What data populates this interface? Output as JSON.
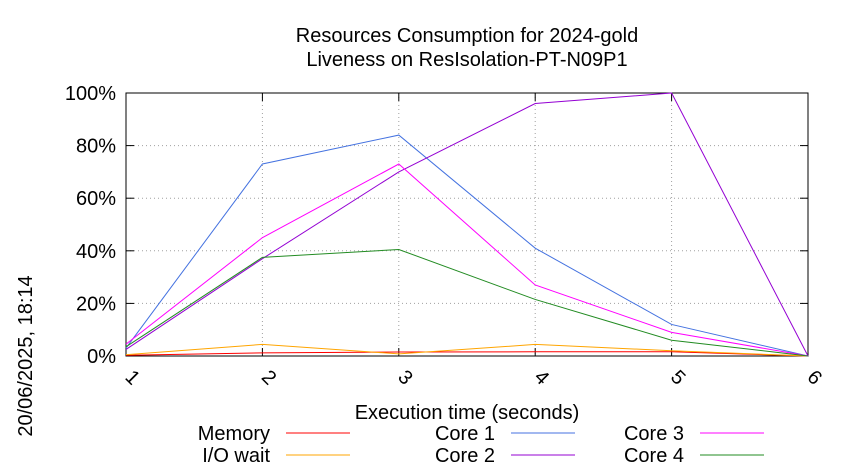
{
  "chart_data": {
    "type": "line",
    "title": "Resources Consumption for 2024-gold",
    "subtitle": "Liveness on ResIsolation-PT-N09P1",
    "xlabel": "Execution time (seconds)",
    "ylabel": "",
    "side_label": "20/06/2025, 18:14",
    "x": [
      1,
      2,
      3,
      4,
      5,
      6
    ],
    "xlim": [
      1,
      6
    ],
    "ylim": [
      0,
      100
    ],
    "y_ticks": [
      0,
      20,
      40,
      60,
      80,
      100
    ],
    "y_tick_labels": [
      "0%",
      "20%",
      "40%",
      "60%",
      "80%",
      "100%"
    ],
    "x_tick_labels": [
      "1",
      "2",
      "3",
      "4",
      "5",
      "6"
    ],
    "grid": true,
    "legend_position": "bottom",
    "series": [
      {
        "name": "Memory",
        "color": "#ff0000",
        "values": [
          0.3,
          1.2,
          1.5,
          1.6,
          1.6,
          0
        ]
      },
      {
        "name": "I/O wait",
        "color": "#ffa500",
        "values": [
          0.5,
          4.4,
          0.8,
          4.4,
          2.0,
          0
        ]
      },
      {
        "name": "Core 1",
        "color": "#4472e0",
        "values": [
          3.0,
          73,
          84,
          41,
          12,
          0
        ]
      },
      {
        "name": "Core 2",
        "color": "#9400d3",
        "values": [
          2.5,
          37,
          70,
          96,
          100,
          0
        ]
      },
      {
        "name": "Core 3",
        "color": "#ff00ff",
        "values": [
          4.5,
          45,
          73,
          27,
          9,
          0
        ]
      },
      {
        "name": "Core 4",
        "color": "#228b22",
        "values": [
          3.5,
          37.5,
          40.5,
          21.5,
          6,
          0
        ]
      }
    ]
  }
}
